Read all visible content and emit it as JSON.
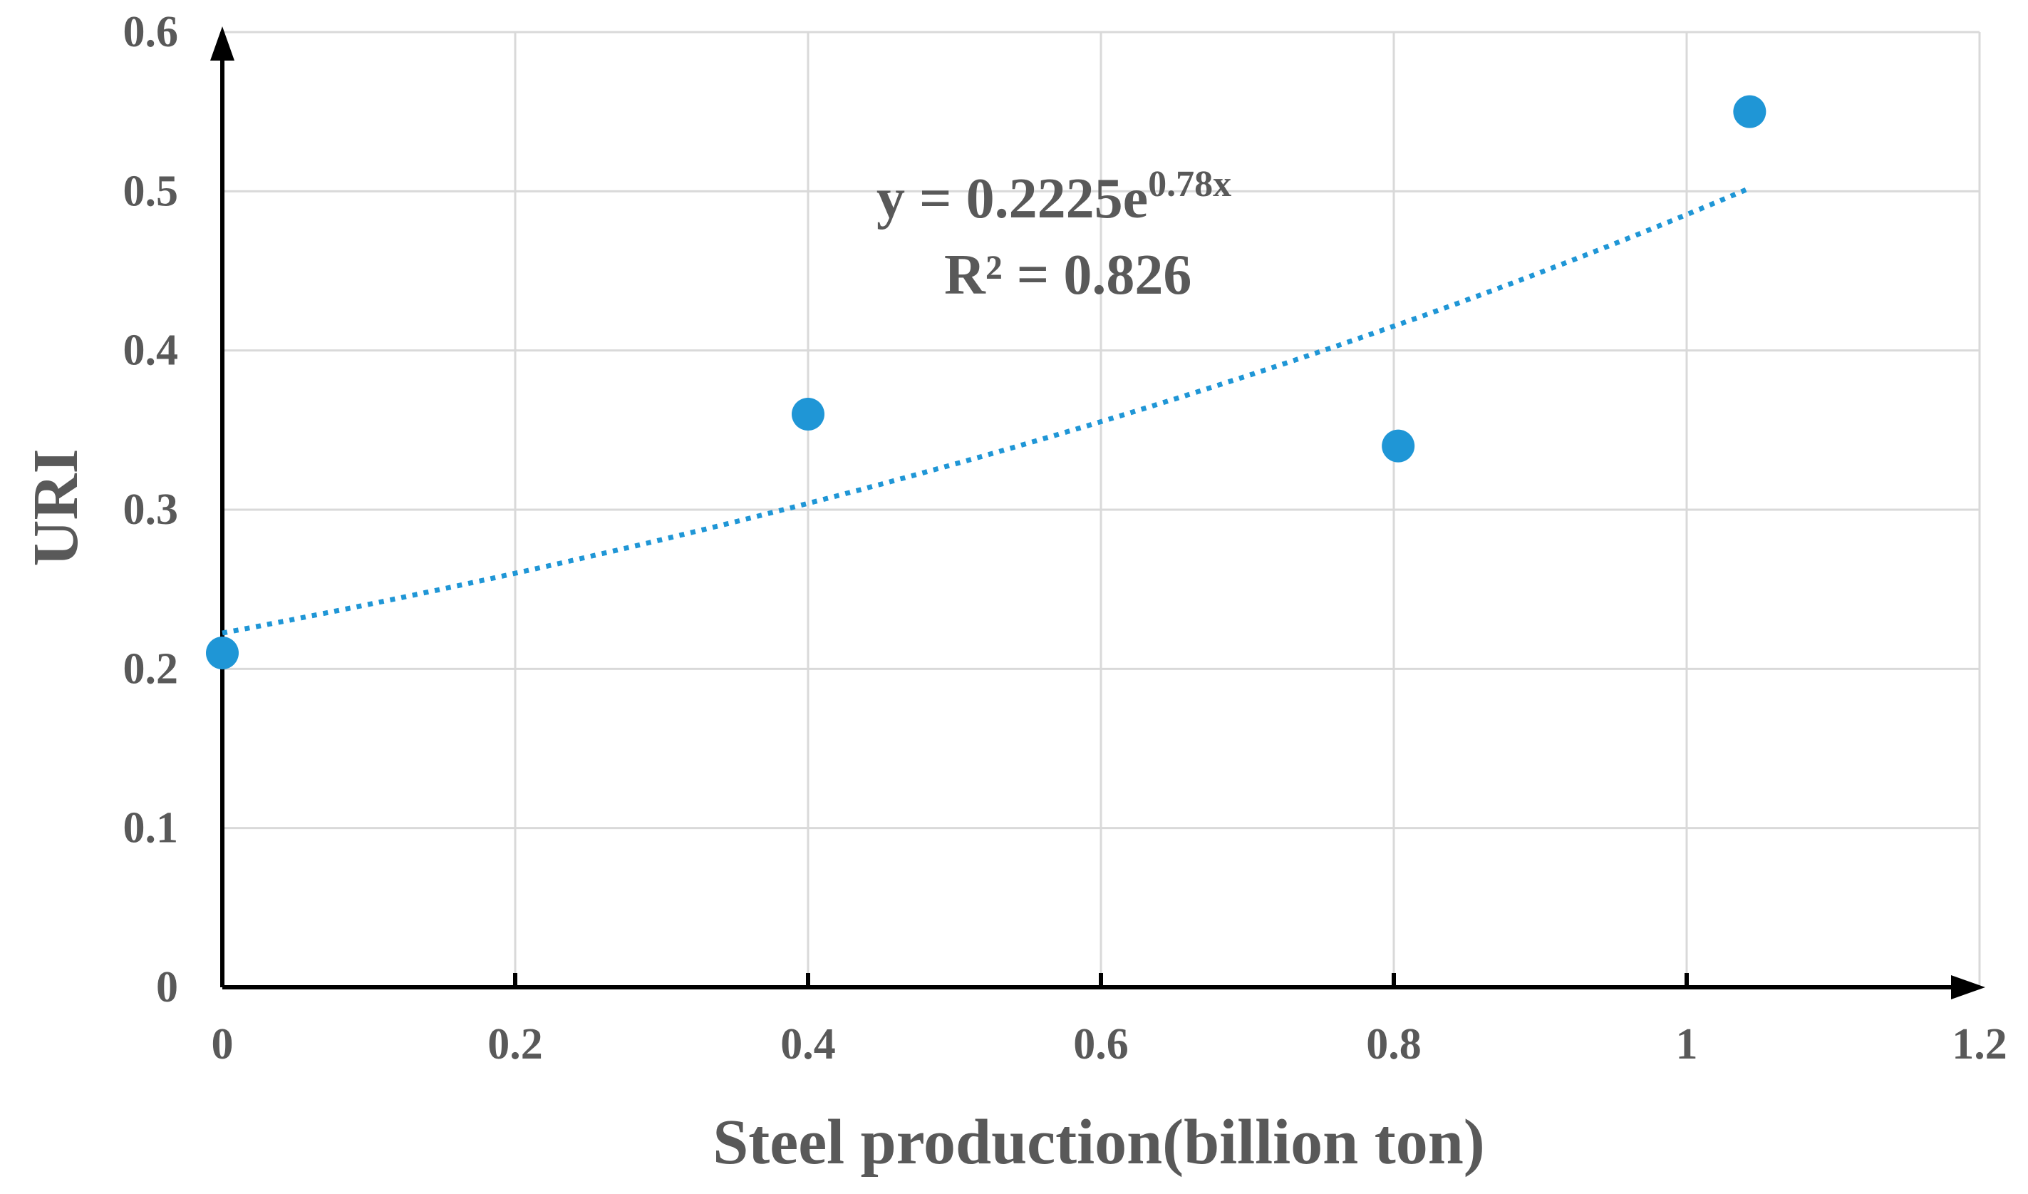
{
  "chart_data": {
    "type": "scatter",
    "title": "",
    "xlabel": "Steel production(billion ton)",
    "ylabel": "URI",
    "xlim": [
      0,
      1.2
    ],
    "ylim": [
      0,
      0.6
    ],
    "x_ticks": [
      "0",
      "0.2",
      "0.4",
      "0.6",
      "0.8",
      "1",
      "1.2"
    ],
    "y_ticks": [
      "0",
      "0.1",
      "0.2",
      "0.3",
      "0.4",
      "0.5",
      "0.6"
    ],
    "x_tick_values": [
      0,
      0.2,
      0.4,
      0.6,
      0.8,
      1.0,
      1.2
    ],
    "y_tick_values": [
      0,
      0.1,
      0.2,
      0.3,
      0.4,
      0.5,
      0.6
    ],
    "grid": true,
    "series": [
      {
        "name": "URI",
        "color": "#1f96d6",
        "points": [
          {
            "x": 0.0,
            "y": 0.21
          },
          {
            "x": 0.4,
            "y": 0.36
          },
          {
            "x": 0.803,
            "y": 0.34
          },
          {
            "x": 1.043,
            "y": 0.55
          }
        ]
      }
    ],
    "trendline": {
      "type": "exponential",
      "a": 0.2225,
      "b": 0.78,
      "x_range": [
        0,
        1.043
      ],
      "style": "dotted",
      "color": "#1f96d6",
      "equation_main": "y = 0.2225e",
      "equation_exponent": "0.78x",
      "r_squared_label": "R² = 0.826"
    }
  }
}
